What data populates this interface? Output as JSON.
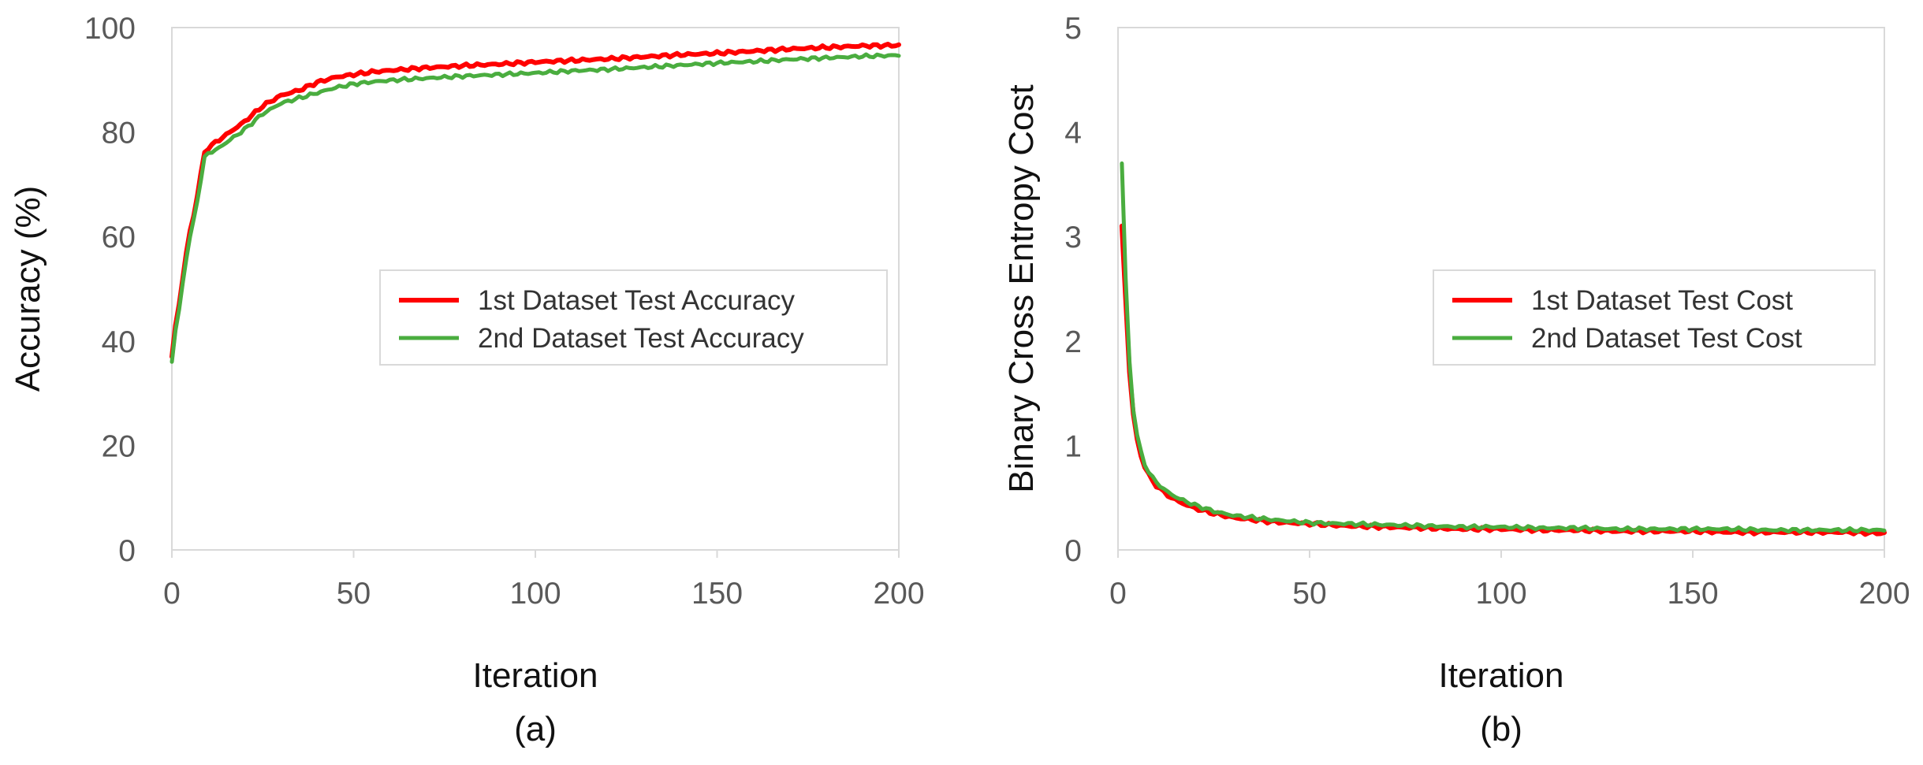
{
  "chart_data": [
    {
      "type": "line",
      "panel": "a",
      "caption": "(a)",
      "xlabel": "Iteration",
      "ylabel": "Accuracy (%)",
      "xlim": [
        0,
        200
      ],
      "ylim": [
        0,
        100
      ],
      "xticks": [
        "0",
        "50",
        "100",
        "150",
        "200"
      ],
      "yticks": [
        "0",
        "20",
        "40",
        "60",
        "80",
        "100"
      ],
      "grid": false,
      "legend_position": "center-right",
      "series": [
        {
          "name": "1st Dataset Test Accuracy",
          "color": "#ff0000",
          "x": [
            0,
            1,
            2,
            3,
            4,
            5,
            6,
            7,
            8,
            9,
            10,
            12,
            14,
            16,
            18,
            20,
            25,
            30,
            35,
            40,
            45,
            50,
            55,
            60,
            70,
            80,
            90,
            100,
            110,
            120,
            130,
            140,
            150,
            160,
            170,
            180,
            190,
            200
          ],
          "values": [
            37,
            43,
            47,
            52,
            57,
            61,
            64,
            68,
            72,
            76,
            77,
            78,
            79,
            80,
            81,
            82,
            85,
            87,
            88,
            89.5,
            90.5,
            91,
            91.5,
            91.8,
            92.3,
            92.7,
            93,
            93.4,
            93.7,
            94,
            94.4,
            94.8,
            95.1,
            95.5,
            95.9,
            96.2,
            96.5,
            96.6
          ]
        },
        {
          "name": "2nd Dataset Test Accuracy",
          "color": "#4aad3f",
          "x": [
            0,
            1,
            2,
            3,
            4,
            5,
            6,
            7,
            8,
            9,
            10,
            12,
            14,
            16,
            18,
            20,
            25,
            30,
            35,
            40,
            45,
            50,
            55,
            60,
            70,
            80,
            90,
            100,
            110,
            120,
            130,
            140,
            150,
            160,
            170,
            180,
            190,
            200
          ],
          "values": [
            36,
            42,
            46,
            51,
            56,
            60,
            63,
            67,
            71,
            75,
            76,
            76.5,
            77.5,
            78.5,
            79.5,
            80.5,
            83.5,
            85.5,
            86.5,
            87.5,
            88.5,
            89.2,
            89.6,
            89.9,
            90.3,
            90.7,
            91,
            91.3,
            91.7,
            92,
            92.4,
            92.8,
            93.2,
            93.5,
            93.9,
            94.2,
            94.5,
            94.7
          ]
        }
      ]
    },
    {
      "type": "line",
      "panel": "b",
      "caption": "(b)",
      "xlabel": "Iteration",
      "ylabel": "Binary Cross Entropy Cost",
      "xlim": [
        0,
        200
      ],
      "ylim": [
        0,
        5
      ],
      "xticks": [
        "0",
        "50",
        "100",
        "150",
        "200"
      ],
      "yticks": [
        "0",
        "1",
        "2",
        "3",
        "4",
        "5"
      ],
      "grid": false,
      "legend_position": "center-right",
      "series": [
        {
          "name": "1st Dataset Test Cost",
          "color": "#ff0000",
          "x": [
            1,
            2,
            3,
            4,
            5,
            6,
            7,
            8,
            9,
            10,
            12,
            14,
            16,
            18,
            20,
            25,
            30,
            35,
            40,
            50,
            60,
            70,
            80,
            90,
            100,
            110,
            120,
            130,
            140,
            150,
            160,
            170,
            180,
            190,
            200
          ],
          "values": [
            3.1,
            2.4,
            1.7,
            1.3,
            1.05,
            0.9,
            0.8,
            0.72,
            0.66,
            0.62,
            0.55,
            0.5,
            0.46,
            0.43,
            0.4,
            0.35,
            0.31,
            0.29,
            0.27,
            0.25,
            0.23,
            0.22,
            0.21,
            0.2,
            0.2,
            0.19,
            0.19,
            0.18,
            0.18,
            0.18,
            0.17,
            0.17,
            0.17,
            0.17,
            0.16
          ]
        },
        {
          "name": "2nd Dataset Test Cost",
          "color": "#4aad3f",
          "x": [
            1,
            2,
            3,
            4,
            5,
            6,
            7,
            8,
            9,
            10,
            12,
            14,
            16,
            18,
            20,
            25,
            30,
            35,
            40,
            50,
            60,
            70,
            80,
            90,
            100,
            110,
            120,
            130,
            140,
            150,
            160,
            170,
            180,
            190,
            200
          ],
          "values": [
            3.7,
            2.6,
            1.8,
            1.35,
            1.1,
            0.93,
            0.82,
            0.75,
            0.69,
            0.65,
            0.58,
            0.53,
            0.49,
            0.46,
            0.43,
            0.37,
            0.33,
            0.31,
            0.29,
            0.26,
            0.25,
            0.24,
            0.23,
            0.22,
            0.22,
            0.21,
            0.21,
            0.2,
            0.2,
            0.2,
            0.2,
            0.19,
            0.19,
            0.19,
            0.19
          ]
        }
      ]
    }
  ]
}
